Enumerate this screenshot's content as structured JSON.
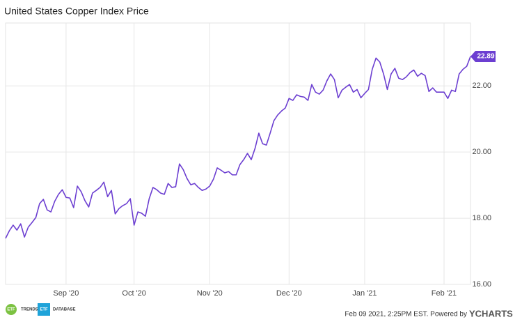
{
  "chart_data": {
    "type": "line",
    "title": "United States Copper Index Price",
    "categories": [
      null,
      null,
      null,
      null,
      null,
      null,
      null,
      null,
      null,
      null,
      null,
      null,
      null,
      null,
      null,
      null,
      "Sep '20",
      null,
      null,
      null,
      null,
      null,
      null,
      null,
      null,
      null,
      null,
      null,
      null,
      null,
      null,
      null,
      null,
      null,
      "Oct '20",
      null,
      null,
      null,
      null,
      null,
      null,
      null,
      null,
      null,
      null,
      null,
      null,
      null,
      null,
      null,
      null,
      null,
      null,
      null,
      "Nov '20",
      null,
      null,
      null,
      null,
      null,
      null,
      null,
      null,
      null,
      null,
      null,
      null,
      null,
      null,
      null,
      null,
      null,
      null,
      null,
      null,
      "Dec '20",
      null,
      null,
      null,
      null,
      null,
      null,
      null,
      null,
      null,
      null,
      null,
      null,
      null,
      null,
      null,
      null,
      null,
      null,
      null,
      "Jan '21",
      null,
      null,
      null,
      null,
      null,
      null,
      null,
      null,
      null,
      null,
      null,
      null,
      null,
      null,
      null,
      null,
      null,
      null,
      null,
      null,
      "Feb '21",
      null,
      null,
      null,
      null,
      null,
      null,
      null
    ],
    "series": [
      {
        "name": "United States Copper Index Price",
        "color": "#6c3fd1",
        "values": [
          17.39,
          17.62,
          17.79,
          17.64,
          17.83,
          17.43,
          17.73,
          17.87,
          18.02,
          18.44,
          18.57,
          18.25,
          18.19,
          18.51,
          18.72,
          18.86,
          18.63,
          18.61,
          18.32,
          18.97,
          18.8,
          18.53,
          18.34,
          18.76,
          18.84,
          18.93,
          19.09,
          18.65,
          18.84,
          18.13,
          18.29,
          18.38,
          18.44,
          18.59,
          17.79,
          18.19,
          18.15,
          18.06,
          18.59,
          18.93,
          18.86,
          18.76,
          18.72,
          19.05,
          18.93,
          18.95,
          19.64,
          19.47,
          19.2,
          19.01,
          19.05,
          18.93,
          18.84,
          18.88,
          18.97,
          19.18,
          19.52,
          19.45,
          19.37,
          19.41,
          19.31,
          19.31,
          19.62,
          19.77,
          19.96,
          19.77,
          20.11,
          20.57,
          20.25,
          20.21,
          20.57,
          20.95,
          21.12,
          21.24,
          21.33,
          21.62,
          21.56,
          21.73,
          21.68,
          21.66,
          21.56,
          22.04,
          21.81,
          21.75,
          21.87,
          22.15,
          22.36,
          22.19,
          21.64,
          21.87,
          21.96,
          22.04,
          21.81,
          21.89,
          21.64,
          21.77,
          21.89,
          22.5,
          22.84,
          22.72,
          22.36,
          21.89,
          22.36,
          22.53,
          22.23,
          22.19,
          22.27,
          22.4,
          22.48,
          22.29,
          22.38,
          22.31,
          21.83,
          21.94,
          21.81,
          21.81,
          21.81,
          21.62,
          21.87,
          21.83,
          22.36,
          22.5,
          22.59,
          22.89
        ]
      }
    ],
    "ylim": [
      16,
      23.9
    ],
    "yticks": [
      {
        "value": 16,
        "label": "16.00"
      },
      {
        "value": 18,
        "label": "18.00"
      },
      {
        "value": 20,
        "label": "20.00"
      },
      {
        "value": 22,
        "label": "22.00"
      }
    ],
    "grid": true
  },
  "footer": {
    "timestamp": "Feb 09 2021, 2:25PM EST. Powered by",
    "brand": "YCHARTS"
  },
  "logos": {
    "left_badge": "ETF",
    "left_text": "TRENDS",
    "right_badge": "ETF",
    "right_text": "DATABASE"
  }
}
